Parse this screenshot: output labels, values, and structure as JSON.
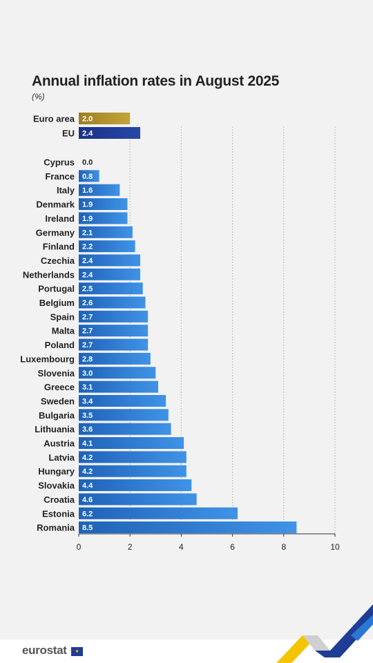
{
  "title": "Annual inflation rates in August 2025",
  "unit": "(%)",
  "footer": {
    "logo_text": "eurostat",
    "flag_icon": "eu-flag-icon"
  },
  "colors": {
    "euro_area": "#b8962e",
    "eu": "#1f3a93",
    "country": "#2a78d4",
    "grid": "#bdbdbd",
    "axis": "#333333"
  },
  "chart_data": {
    "type": "bar",
    "orientation": "horizontal",
    "title": "Annual inflation rates in August 2025",
    "unit": "(%)",
    "xlim": [
      0,
      10
    ],
    "xticks": [
      0,
      2,
      4,
      6,
      8,
      10
    ],
    "grid": "vertical dashed",
    "aggregates": [
      {
        "label": "Euro area",
        "value": 2.0,
        "display": "2.0"
      },
      {
        "label": "EU",
        "value": 2.4,
        "display": "2.4"
      }
    ],
    "categories": [
      "Cyprus",
      "France",
      "Italy",
      "Denmark",
      "Ireland",
      "Germany",
      "Finland",
      "Czechia",
      "Netherlands",
      "Portugal",
      "Belgium",
      "Spain",
      "Malta",
      "Poland",
      "Luxembourg",
      "Slovenia",
      "Greece",
      "Sweden",
      "Bulgaria",
      "Lithuania",
      "Austria",
      "Latvia",
      "Hungary",
      "Slovakia",
      "Croatia",
      "Estonia",
      "Romania"
    ],
    "values": [
      0.0,
      0.8,
      1.6,
      1.9,
      1.9,
      2.1,
      2.2,
      2.4,
      2.4,
      2.5,
      2.6,
      2.7,
      2.7,
      2.7,
      2.8,
      3.0,
      3.1,
      3.4,
      3.5,
      3.6,
      4.1,
      4.2,
      4.2,
      4.4,
      4.6,
      6.2,
      8.5
    ],
    "display": [
      "0.0",
      "0.8",
      "1.6",
      "1.9",
      "1.9",
      "2.1",
      "2.2",
      "2.4",
      "2.4",
      "2.5",
      "2.6",
      "2.7",
      "2.7",
      "2.7",
      "2.8",
      "3.0",
      "3.1",
      "3.4",
      "3.5",
      "3.6",
      "4.1",
      "4.2",
      "4.2",
      "4.4",
      "4.6",
      "6.2",
      "8.5"
    ]
  }
}
